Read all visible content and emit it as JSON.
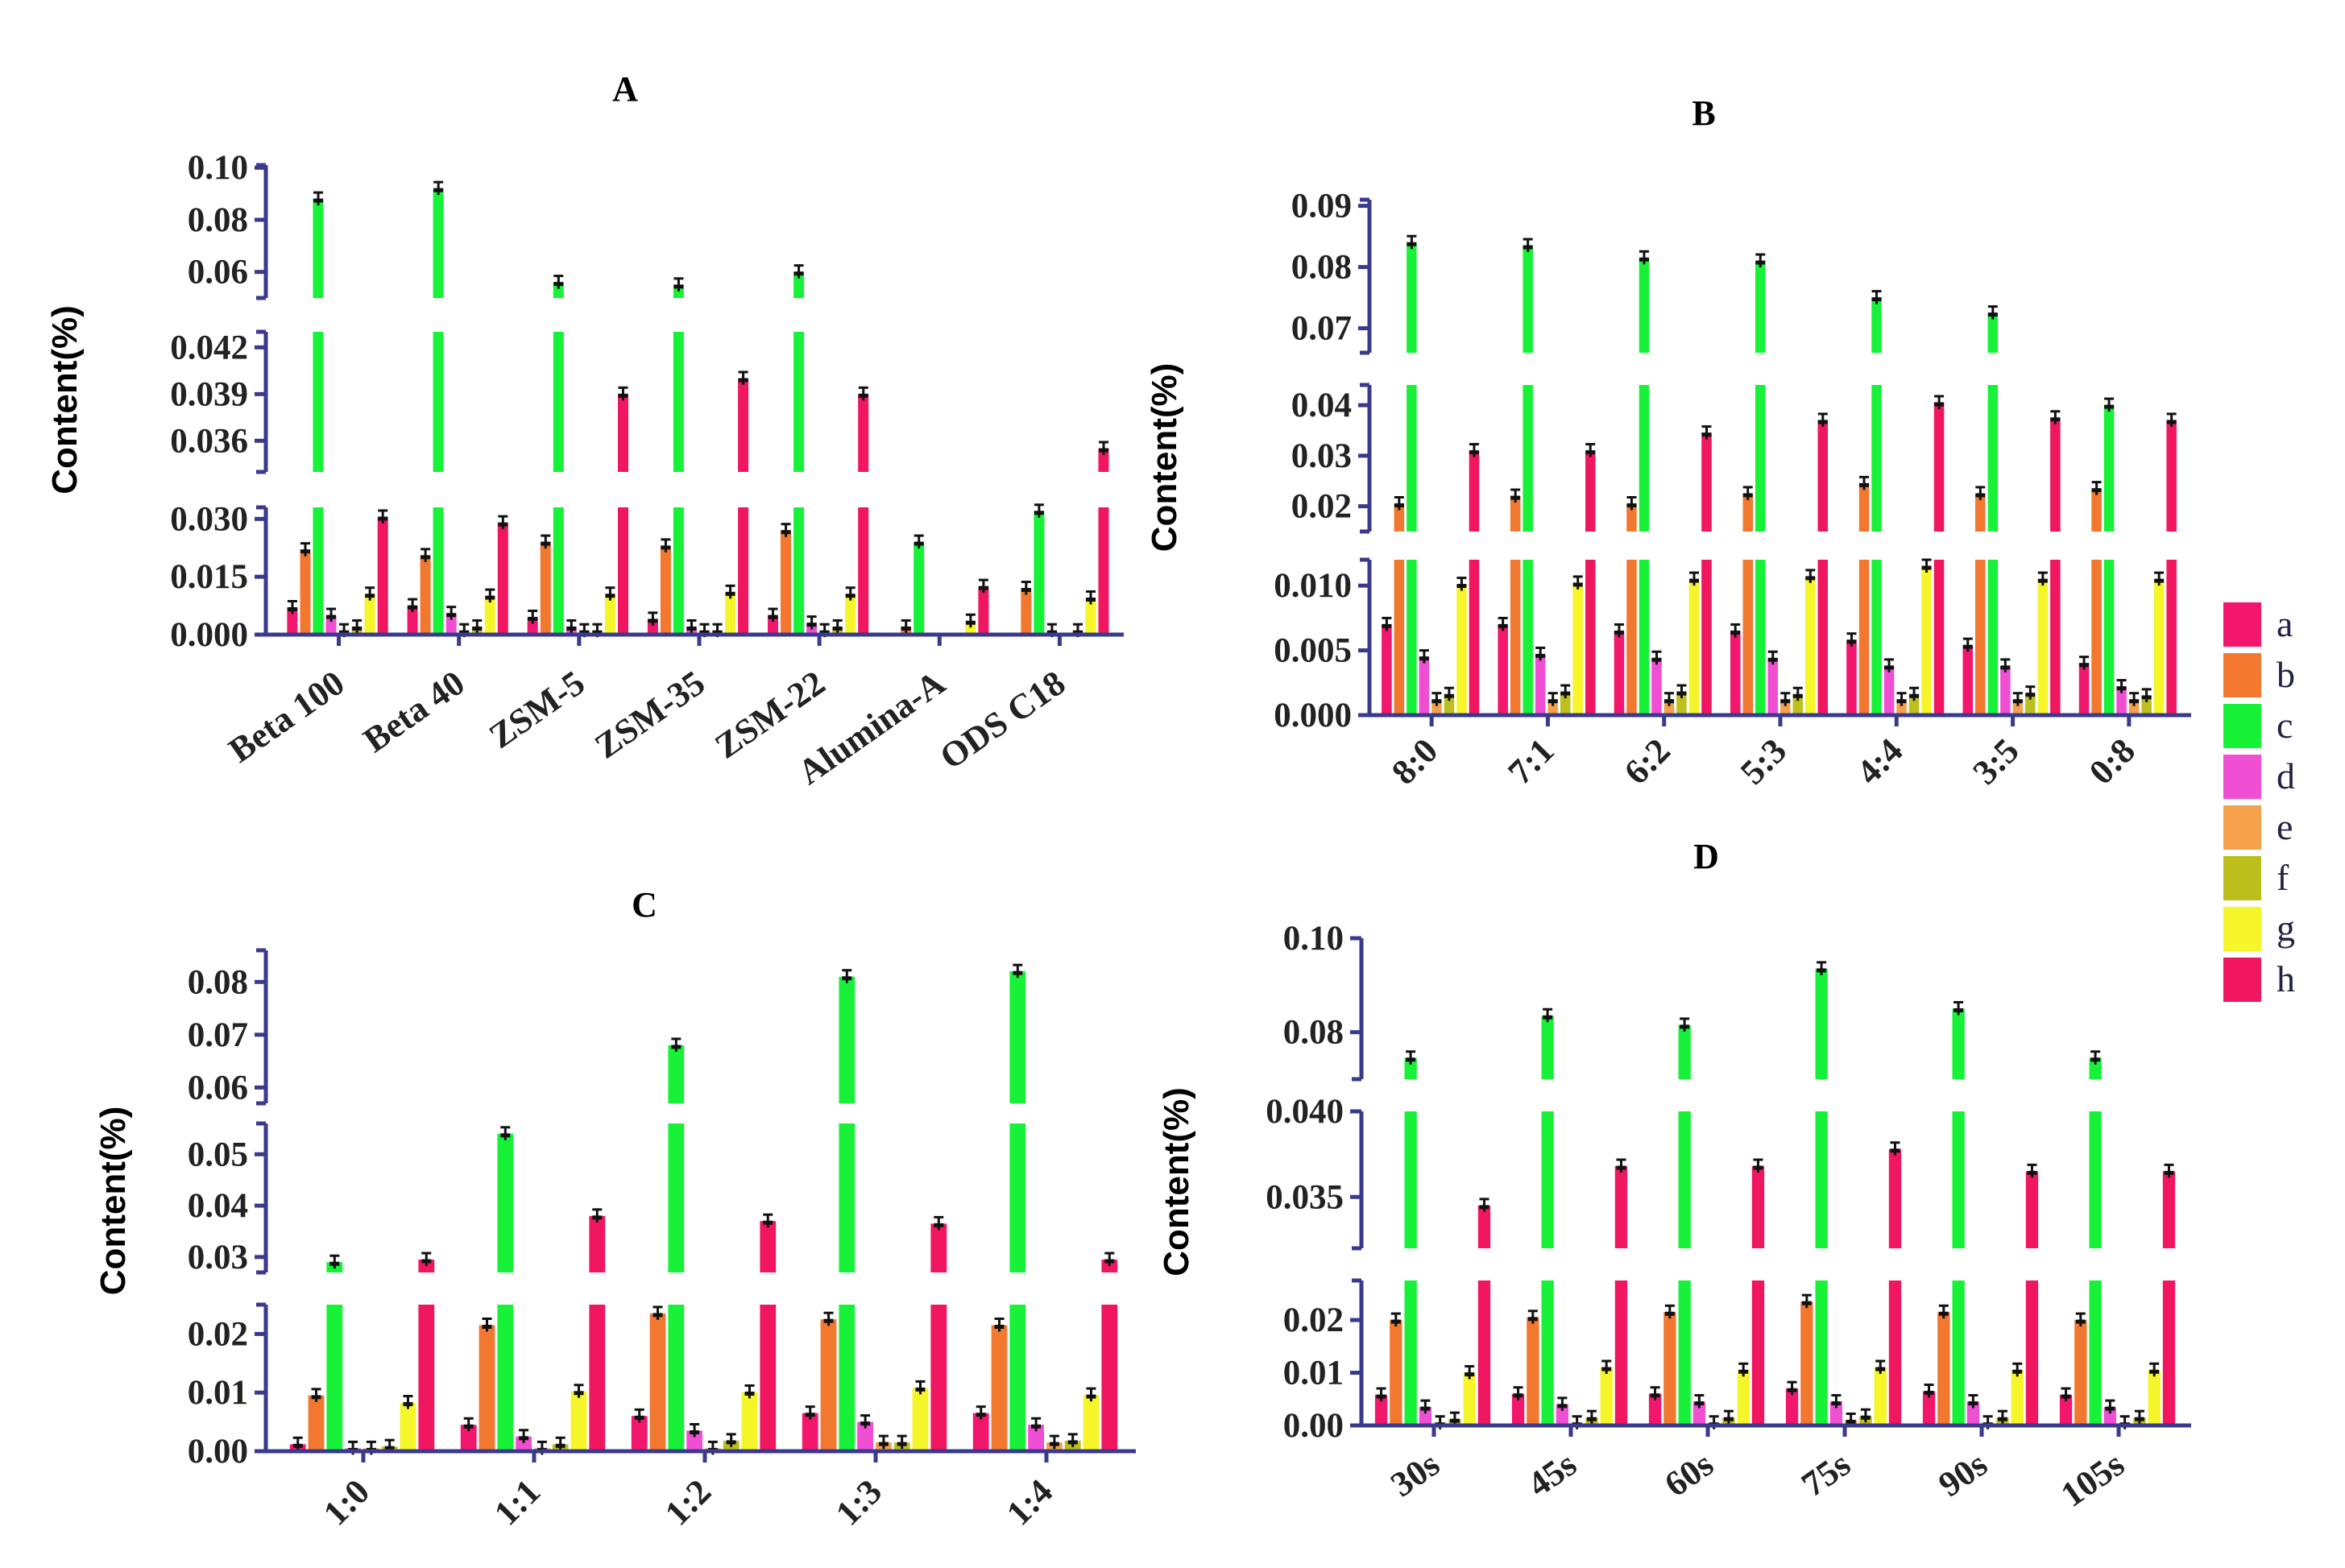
{
  "series_colors": {
    "a": "#f2166c",
    "b": "#f2772f",
    "c": "#17f238",
    "d": "#f04ed3",
    "e": "#f5a14c",
    "f": "#bdbf1d",
    "g": "#f5f52a",
    "h": "#f0165f"
  },
  "legend": [
    "a",
    "b",
    "c",
    "d",
    "e",
    "f",
    "g",
    "h"
  ],
  "chart_data": [
    {
      "type": "bar",
      "title": "A",
      "ylabel": "Content(%)",
      "categories": [
        "Beta 100",
        "Beta 40",
        "ZSM-5",
        "ZSM-35",
        "ZSM-22",
        "Alumina-A",
        "ODS C18"
      ],
      "segments": [
        {
          "range": [
            0,
            0.033
          ],
          "ticks": [
            "0.000",
            "0.015",
            "0.030"
          ]
        },
        {
          "range": [
            0.034,
            0.043
          ],
          "ticks": [
            "0.036",
            "0.039",
            "0.042"
          ]
        },
        {
          "range": [
            0.05,
            0.101
          ],
          "ticks": [
            "0.06",
            "0.08",
            "0.10"
          ]
        }
      ],
      "series": [
        {
          "name": "a",
          "values": [
            0.007,
            0.0075,
            0.0045,
            0.004,
            0.005,
            0.0,
            0.0
          ]
        },
        {
          "name": "b",
          "values": [
            0.022,
            0.0205,
            0.024,
            0.023,
            0.027,
            0.002,
            0.012
          ]
        },
        {
          "name": "c",
          "values": [
            0.088,
            0.092,
            0.056,
            0.055,
            0.06,
            0.024,
            0.032
          ]
        },
        {
          "name": "d",
          "values": [
            0.005,
            0.0055,
            0.002,
            0.002,
            0.003,
            0.0,
            0.001
          ]
        },
        {
          "name": "e",
          "values": [
            0.001,
            0.001,
            0.001,
            0.001,
            0.001,
            0.0,
            0.0
          ]
        },
        {
          "name": "f",
          "values": [
            0.002,
            0.002,
            0.001,
            0.001,
            0.002,
            0.0,
            0.001
          ]
        },
        {
          "name": "g",
          "values": [
            0.0105,
            0.01,
            0.0105,
            0.011,
            0.0105,
            0.0035,
            0.0095
          ]
        },
        {
          "name": "h",
          "values": [
            0.0305,
            0.029,
            0.039,
            0.04,
            0.039,
            0.0125,
            0.0355
          ]
        }
      ]
    },
    {
      "type": "bar",
      "title": "B",
      "ylabel": "Content(%)",
      "categories": [
        "8:0",
        "7:1",
        "6:2",
        "5:3",
        "4:4",
        "3:5",
        "0:8"
      ],
      "segments": [
        {
          "range": [
            0,
            0.012
          ],
          "ticks": [
            "0.000",
            "0.005",
            "0.010"
          ]
        },
        {
          "range": [
            0.015,
            0.044
          ],
          "ticks": [
            "0.02",
            "0.03",
            "0.04"
          ]
        },
        {
          "range": [
            0.066,
            0.091
          ],
          "ticks": [
            "0.07",
            "0.08",
            "0.09"
          ]
        }
      ],
      "series": [
        {
          "name": "a",
          "values": [
            0.007,
            0.007,
            0.0065,
            0.0065,
            0.0058,
            0.0054,
            0.004
          ]
        },
        {
          "name": "b",
          "values": [
            0.0205,
            0.022,
            0.0205,
            0.0225,
            0.0245,
            0.0225,
            0.0235
          ]
        },
        {
          "name": "c",
          "values": [
            0.084,
            0.0835,
            0.0815,
            0.081,
            0.075,
            0.0725,
            0.04
          ]
        },
        {
          "name": "d",
          "values": [
            0.0045,
            0.0047,
            0.0044,
            0.0044,
            0.0038,
            0.0038,
            0.0022
          ]
        },
        {
          "name": "e",
          "values": [
            0.0012,
            0.0012,
            0.0012,
            0.0012,
            0.0012,
            0.0012,
            0.0012
          ]
        },
        {
          "name": "f",
          "values": [
            0.0016,
            0.0018,
            0.0018,
            0.0016,
            0.0016,
            0.0017,
            0.0015
          ]
        },
        {
          "name": "g",
          "values": [
            0.0101,
            0.0102,
            0.0105,
            0.0107,
            0.0115,
            0.0105,
            0.0105
          ]
        },
        {
          "name": "h",
          "values": [
            0.031,
            0.031,
            0.0345,
            0.037,
            0.0405,
            0.0375,
            0.037
          ]
        }
      ]
    },
    {
      "type": "bar",
      "title": "C",
      "ylabel": "Content(%)",
      "categories": [
        "1:0",
        "1:1",
        "1:2",
        "1:3",
        "1:4"
      ],
      "segments": [
        {
          "range": [
            0,
            0.025
          ],
          "ticks": [
            "0.00",
            "0.01",
            "0.02"
          ]
        },
        {
          "range": [
            0.027,
            0.056
          ],
          "ticks": [
            "0.03",
            "0.04",
            "0.05"
          ]
        },
        {
          "range": [
            0.057,
            0.086
          ],
          "ticks": [
            "0.06",
            "0.07",
            "0.08"
          ]
        }
      ],
      "series": [
        {
          "name": "a",
          "values": [
            0.0012,
            0.0045,
            0.006,
            0.0065,
            0.0065
          ]
        },
        {
          "name": "b",
          "values": [
            0.0095,
            0.0215,
            0.0235,
            0.0225,
            0.0215
          ]
        },
        {
          "name": "c",
          "values": [
            0.029,
            0.054,
            0.068,
            0.081,
            0.082
          ]
        },
        {
          "name": "d",
          "values": [
            0.0005,
            0.0025,
            0.0035,
            0.005,
            0.0045
          ]
        },
        {
          "name": "e",
          "values": [
            0.0005,
            0.0005,
            0.0005,
            0.0015,
            0.0015
          ]
        },
        {
          "name": "f",
          "values": [
            0.0008,
            0.0012,
            0.0018,
            0.0015,
            0.0018
          ]
        },
        {
          "name": "g",
          "values": [
            0.0083,
            0.0102,
            0.0101,
            0.0108,
            0.0096
          ]
        },
        {
          "name": "h",
          "values": [
            0.0295,
            0.038,
            0.037,
            0.0365,
            0.0295
          ]
        }
      ]
    },
    {
      "type": "bar",
      "title": "D",
      "ylabel": "Content(%)",
      "categories": [
        "30s",
        "45s",
        "60s",
        "75s",
        "90s",
        "105s"
      ],
      "segments": [
        {
          "range": [
            0,
            0.0275
          ],
          "ticks": [
            "0.00",
            "0.01",
            "0.02"
          ]
        },
        {
          "range": [
            0.032,
            0.04
          ],
          "ticks": [
            "0.035",
            "0.040"
          ]
        },
        {
          "range": [
            0.07,
            0.1
          ],
          "ticks": [
            "0.08",
            "0.10"
          ]
        }
      ],
      "series": [
        {
          "name": "a",
          "values": [
            0.0058,
            0.006,
            0.006,
            0.007,
            0.0065,
            0.0058
          ]
        },
        {
          "name": "b",
          "values": [
            0.02,
            0.0205,
            0.0215,
            0.0235,
            0.0215,
            0.02
          ]
        },
        {
          "name": "c",
          "values": [
            0.0745,
            0.0835,
            0.0815,
            0.0935,
            0.085,
            0.0745
          ]
        },
        {
          "name": "d",
          "values": [
            0.0035,
            0.004,
            0.0045,
            0.0045,
            0.0045,
            0.0035
          ]
        },
        {
          "name": "e",
          "values": [
            0.0005,
            0.0005,
            0.0005,
            0.001,
            0.0005,
            0.0005
          ]
        },
        {
          "name": "f",
          "values": [
            0.0012,
            0.0015,
            0.0015,
            0.0018,
            0.0015,
            0.0015
          ]
        },
        {
          "name": "g",
          "values": [
            0.01,
            0.011,
            0.0105,
            0.011,
            0.0105,
            0.0105
          ]
        },
        {
          "name": "h",
          "values": [
            0.0345,
            0.0368,
            0.0368,
            0.0378,
            0.0365,
            0.0365
          ]
        }
      ]
    }
  ]
}
